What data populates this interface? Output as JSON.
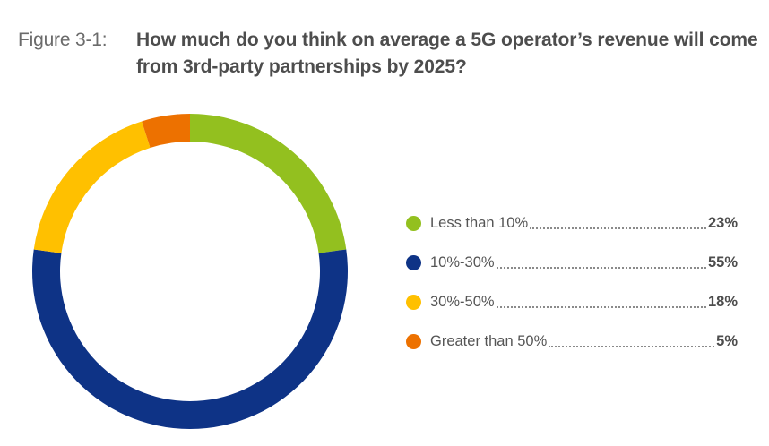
{
  "figure": {
    "label": "Figure 3-1:",
    "title": "How much do you think on average a 5G operator’s revenue will come from 3rd-party partnerships by 2025?"
  },
  "legend": [
    {
      "label": "Less than 10%",
      "value_text": "23%",
      "color": "#93c01f"
    },
    {
      "label": "10%-30%",
      "value_text": "55%",
      "color": "#0e3386"
    },
    {
      "label": "30%-50%",
      "value_text": "18%",
      "color": "#ffc000"
    },
    {
      "label": "Greater than 50%",
      "value_text": "5%",
      "color": "#ed7100"
    }
  ],
  "chart_data": {
    "type": "pie",
    "variant": "donut",
    "title": "How much do you think on average a 5G operator’s revenue will come from 3rd-party partnerships by 2025?",
    "categories": [
      "Less than 10%",
      "10%-30%",
      "30%-50%",
      "Greater than 50%"
    ],
    "values": [
      23,
      55,
      18,
      5
    ],
    "unit": "%",
    "colors": [
      "#93c01f",
      "#0e3386",
      "#ffc000",
      "#ed7100"
    ],
    "start": "12 o'clock",
    "direction": "clockwise",
    "legend_position": "right"
  }
}
